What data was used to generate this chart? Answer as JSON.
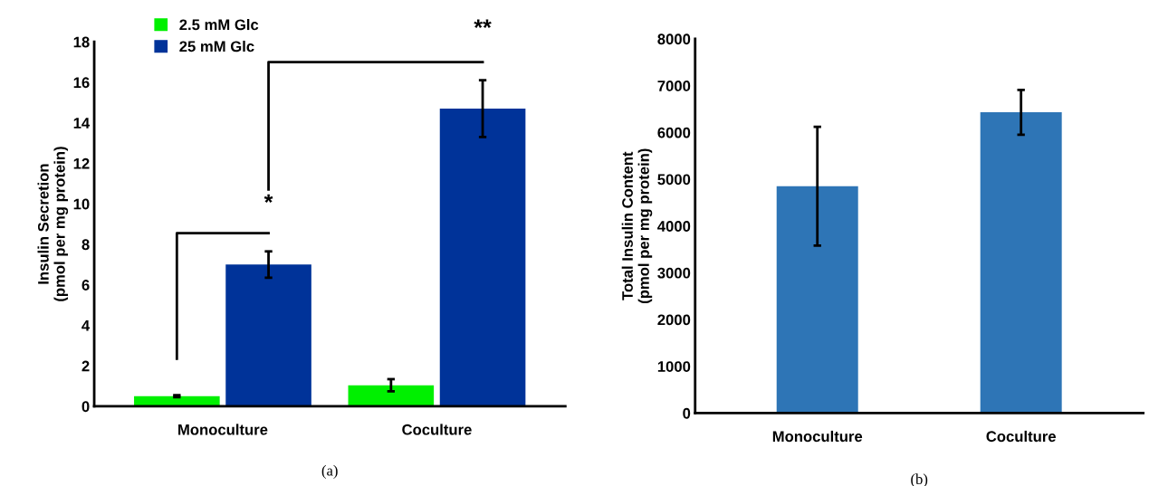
{
  "chart_data": [
    {
      "type": "bar",
      "ylabel": "Insulin Secretion\n(pmol per mg protein)",
      "categories": [
        "Monoculture",
        "Coculture"
      ],
      "series": [
        {
          "name": "2.5 mM Glc",
          "color": "#00f000",
          "values": [
            0.5,
            1.04
          ],
          "errors": [
            0.05,
            0.3
          ]
        },
        {
          "name": "25 mM Glc",
          "color": "#003399",
          "values": [
            7.0,
            14.7
          ],
          "errors": [
            0.65,
            1.4
          ]
        }
      ],
      "ylim": [
        0,
        18
      ],
      "yticks": [
        0,
        2,
        4,
        6,
        8,
        10,
        12,
        14,
        16,
        18
      ],
      "grid": false,
      "legend": "top left",
      "annotations": [
        "*",
        "**",
        "(a)"
      ]
    },
    {
      "type": "bar",
      "ylabel": "Total Insulin Content\n(pmol per mg protein)",
      "categories": [
        "Monoculture",
        "Coculture"
      ],
      "series": [
        {
          "color": "#2e75b6",
          "values": [
            4850,
            6430
          ],
          "errors": [
            1270,
            480
          ]
        }
      ],
      "ylim": [
        0,
        8000
      ],
      "yticks": [
        0,
        1000,
        2000,
        3000,
        4000,
        5000,
        6000,
        7000,
        8000
      ],
      "grid": false,
      "legend": false,
      "annotations": [
        "(b)"
      ]
    }
  ]
}
